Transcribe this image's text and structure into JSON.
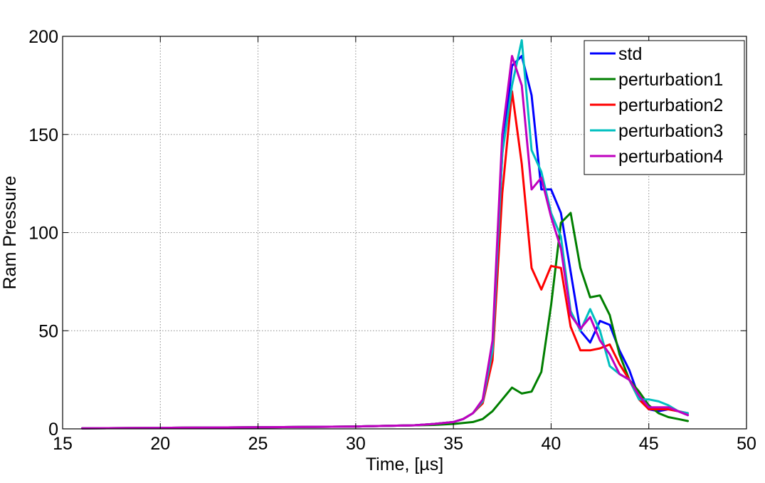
{
  "chart_data": {
    "type": "line",
    "title": "",
    "xlabel": "Time, [µs]",
    "ylabel": "Ram Pressure",
    "xlim": [
      15,
      50
    ],
    "ylim": [
      0,
      200
    ],
    "xticks": [
      15,
      20,
      25,
      30,
      35,
      40,
      45,
      50
    ],
    "yticks": [
      0,
      50,
      100,
      150,
      200
    ],
    "grid": true,
    "legend_position": "top-right",
    "series": [
      {
        "name": "std",
        "color": "#0000ff",
        "x": [
          16,
          20,
          25,
          30,
          33,
          34,
          35,
          35.5,
          36,
          36.5,
          37,
          37.5,
          38,
          38.5,
          39,
          39.5,
          40,
          40.5,
          41,
          41.5,
          42,
          42.5,
          43,
          43.5,
          44,
          44.5,
          45,
          45.5,
          46,
          46.5,
          47
        ],
        "y": [
          0.3,
          0.5,
          0.8,
          1.2,
          1.8,
          2.5,
          3.5,
          5,
          8,
          14,
          40,
          140,
          185,
          190,
          170,
          122,
          122,
          110,
          80,
          50,
          44,
          55,
          53,
          40,
          30,
          16,
          10,
          9,
          10,
          9,
          7
        ]
      },
      {
        "name": "perturbation1",
        "color": "#007f00",
        "x": [
          16,
          20,
          25,
          30,
          34,
          35,
          36,
          36.5,
          37,
          37.5,
          38,
          38.5,
          39,
          39.5,
          40,
          40.5,
          41,
          41.5,
          42,
          42.5,
          43,
          43.5,
          44,
          44.5,
          45,
          45.5,
          46,
          46.5,
          47
        ],
        "y": [
          0.3,
          0.5,
          0.8,
          1.2,
          2,
          2.5,
          3.5,
          5,
          9,
          15,
          21,
          18,
          19,
          29,
          63,
          105,
          110,
          82,
          67,
          68,
          58,
          38,
          25,
          19,
          12,
          8,
          6,
          5,
          4
        ]
      },
      {
        "name": "perturbation2",
        "color": "#ff0000",
        "x": [
          16,
          20,
          25,
          30,
          33,
          34,
          35,
          35.5,
          36,
          36.5,
          37,
          37.5,
          38,
          38.5,
          39,
          39.5,
          40,
          40.5,
          41,
          41.5,
          42,
          42.5,
          43,
          43.5,
          44,
          44.5,
          45,
          45.5,
          46,
          46.5,
          47
        ],
        "y": [
          0.3,
          0.5,
          0.8,
          1.2,
          1.8,
          2.5,
          3.5,
          5,
          8,
          13,
          35,
          120,
          172,
          135,
          82,
          71,
          83,
          82,
          52,
          40,
          40,
          41,
          43,
          33,
          25,
          15,
          10,
          10,
          10,
          9,
          8
        ]
      },
      {
        "name": "perturbation3",
        "color": "#00bfbf",
        "x": [
          16,
          20,
          25,
          30,
          33,
          34,
          35,
          35.5,
          36,
          36.5,
          37,
          37.5,
          38,
          38.5,
          39,
          39.5,
          40,
          40.5,
          41,
          41.5,
          42,
          42.5,
          43,
          43.5,
          44,
          44.5,
          45,
          45.5,
          46,
          46.5,
          47
        ],
        "y": [
          0.3,
          0.5,
          0.8,
          1.2,
          1.8,
          2.5,
          3.5,
          5,
          8,
          14,
          40,
          140,
          175,
          198,
          142,
          131,
          110,
          98,
          60,
          50,
          61,
          50,
          32,
          28,
          25,
          15,
          15,
          14,
          12,
          9,
          8
        ]
      },
      {
        "name": "perturbation4",
        "color": "#bf00bf",
        "x": [
          16,
          20,
          25,
          30,
          33,
          34,
          35,
          35.5,
          36,
          36.5,
          37,
          37.5,
          38,
          38.5,
          39,
          39.5,
          40,
          40.5,
          41,
          41.5,
          42,
          42.5,
          43,
          43.5,
          44,
          44.5,
          45,
          45.5,
          46,
          46.5,
          47
        ],
        "y": [
          0.3,
          0.5,
          0.8,
          1.2,
          1.8,
          2.5,
          3.5,
          5,
          8,
          15,
          45,
          150,
          190,
          175,
          122,
          128,
          108,
          92,
          58,
          51,
          57,
          45,
          38,
          28,
          25,
          17,
          11,
          11,
          11,
          9,
          7
        ]
      }
    ]
  }
}
